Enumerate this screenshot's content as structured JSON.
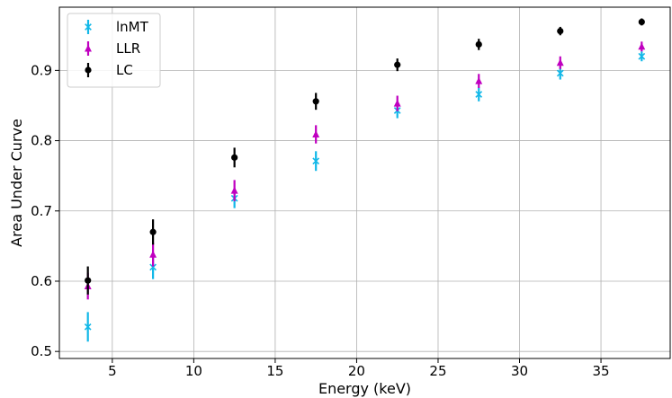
{
  "chart_data": {
    "type": "scatter",
    "xlabel": "Energy (keV)",
    "ylabel": "Area Under Curve",
    "xlim": [
      1.75,
      39.25
    ],
    "ylim": [
      0.49,
      0.99
    ],
    "grid": true,
    "legend_position": "top-left",
    "xticks": [
      5,
      10,
      15,
      20,
      25,
      30,
      35
    ],
    "yticks": [
      0.5,
      0.6,
      0.7,
      0.8,
      0.9
    ],
    "xtick_labels": [
      "5",
      "10",
      "15",
      "20",
      "25",
      "30",
      "35"
    ],
    "ytick_labels": [
      "0.5",
      "0.6",
      "0.7",
      "0.8",
      "0.9"
    ],
    "series": [
      {
        "name": "lnMT",
        "color": "#12b8e8",
        "marker": "x",
        "x": [
          3.5,
          7.5,
          12.5,
          17.5,
          22.5,
          27.5,
          32.5,
          37.5
        ],
        "y": [
          0.535,
          0.62,
          0.718,
          0.771,
          0.843,
          0.866,
          0.896,
          0.92
        ],
        "yerr": [
          0.021,
          0.017,
          0.014,
          0.014,
          0.011,
          0.01,
          0.009,
          0.007
        ]
      },
      {
        "name": "LLR",
        "color": "#c000c0",
        "marker": "triangle",
        "x": [
          3.5,
          7.5,
          12.5,
          17.5,
          22.5,
          27.5,
          32.5,
          37.5
        ],
        "y": [
          0.593,
          0.638,
          0.729,
          0.809,
          0.853,
          0.885,
          0.911,
          0.934
        ],
        "yerr": [
          0.019,
          0.017,
          0.015,
          0.013,
          0.011,
          0.01,
          0.009,
          0.007
        ]
      },
      {
        "name": "LC",
        "color": "#000000",
        "marker": "circle",
        "x": [
          3.5,
          7.5,
          12.5,
          17.5,
          22.5,
          27.5,
          32.5,
          37.5
        ],
        "y": [
          0.601,
          0.67,
          0.776,
          0.856,
          0.908,
          0.937,
          0.956,
          0.969
        ],
        "yerr": [
          0.02,
          0.018,
          0.014,
          0.012,
          0.009,
          0.008,
          0.006,
          0.005
        ]
      }
    ]
  }
}
